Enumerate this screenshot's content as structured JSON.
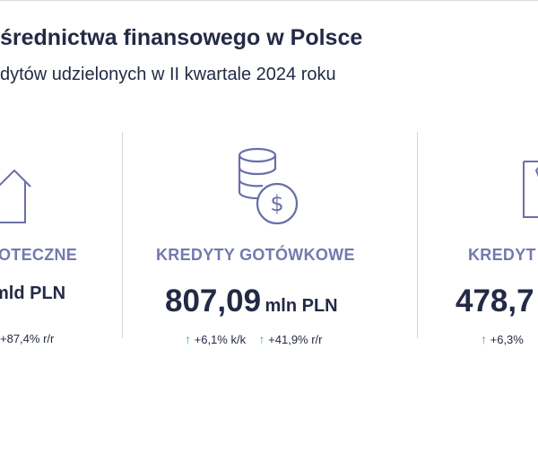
{
  "header": {
    "title": "średnictwa finansowego w Polsce",
    "subtitle": "dytów udzielonych w II kwartale 2024 roku"
  },
  "columns": [
    {
      "label": "OTECZNE",
      "value_unit": "mld PLN",
      "changes": [
        {
          "text": "+87,4% r/r"
        }
      ]
    },
    {
      "label": "KREDYTY GOTÓWKOWE",
      "value_num": "807,09",
      "value_unit": "mln PLN",
      "changes": [
        {
          "arrow": "↑",
          "text": "+6,1% k/k"
        },
        {
          "arrow": "↑",
          "text": "+41,9% r/r"
        }
      ]
    },
    {
      "label": "KREDYT",
      "value_num": "478,7",
      "changes": [
        {
          "arrow": "↑",
          "text": "+6,3%"
        }
      ]
    }
  ],
  "icons": {
    "left": "house-icon",
    "middle": "coins-dollar-icon",
    "right": "document-icon"
  },
  "colors": {
    "text": "#232a45",
    "label": "#7479b0",
    "icon": "#6a6fa8",
    "up_arrow": "#4caf73"
  }
}
